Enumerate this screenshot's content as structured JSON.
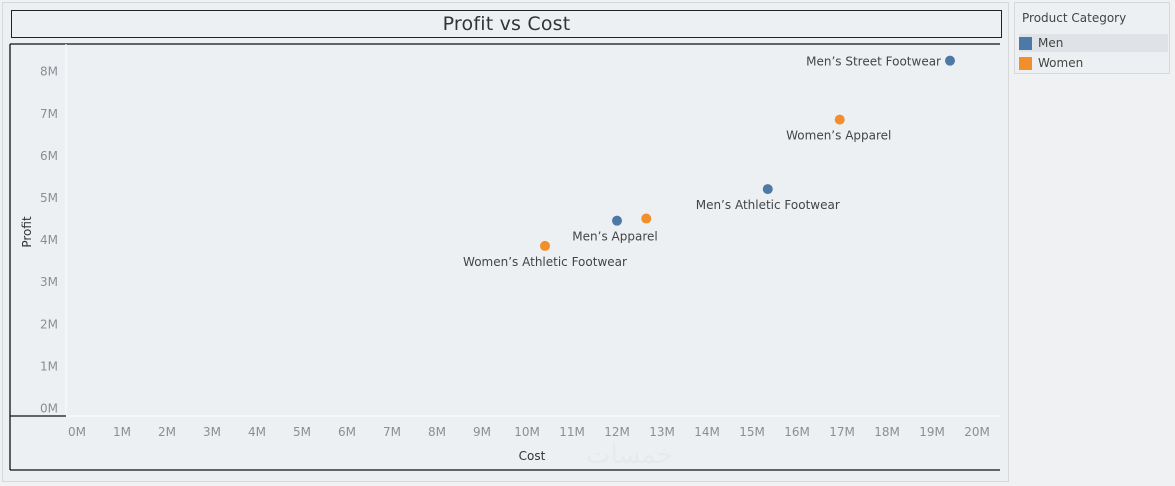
{
  "watermark": "خمسات",
  "legend": {
    "title": "Product Category",
    "items": [
      {
        "label": "Men",
        "color": "#4e79a7"
      },
      {
        "label": "Women",
        "color": "#f28e2b"
      }
    ]
  },
  "chart_data": {
    "type": "scatter",
    "title": "Profit vs Cost",
    "xlabel": "Cost",
    "ylabel": "Profit",
    "xlim": [
      0,
      20000000
    ],
    "ylim": [
      0,
      8500000
    ],
    "xticks": [
      0,
      1,
      2,
      3,
      4,
      5,
      6,
      7,
      8,
      9,
      10,
      11,
      12,
      13,
      14,
      15,
      16,
      17,
      18,
      19,
      20
    ],
    "xtick_labels": [
      "0M",
      "1M",
      "2M",
      "3M",
      "4M",
      "5M",
      "6M",
      "7M",
      "8M",
      "9M",
      "10M",
      "11M",
      "12M",
      "13M",
      "14M",
      "15M",
      "16M",
      "17M",
      "18M",
      "19M",
      "20M"
    ],
    "yticks": [
      0,
      1,
      2,
      3,
      4,
      5,
      6,
      7,
      8
    ],
    "ytick_labels": [
      "0M",
      "1M",
      "2M",
      "3M",
      "4M",
      "5M",
      "6M",
      "7M",
      "8M"
    ],
    "series": [
      {
        "name": "Men",
        "color": "#4e79a7",
        "points": [
          {
            "label": "Men’s Street Footwear",
            "x": 19400000,
            "y": 8250000
          },
          {
            "label": "Men’s Athletic Footwear",
            "x": 15350000,
            "y": 5200000
          },
          {
            "label": "Men’s Apparel",
            "x": 12000000,
            "y": 4450000
          }
        ]
      },
      {
        "name": "Women",
        "color": "#f28e2b",
        "points": [
          {
            "label": "Women’s Apparel",
            "x": 16950000,
            "y": 6850000
          },
          {
            "label": "",
            "x": 12650000,
            "y": 4500000
          },
          {
            "label": "Women’s Athletic Footwear",
            "x": 10400000,
            "y": 3850000
          }
        ]
      }
    ]
  }
}
